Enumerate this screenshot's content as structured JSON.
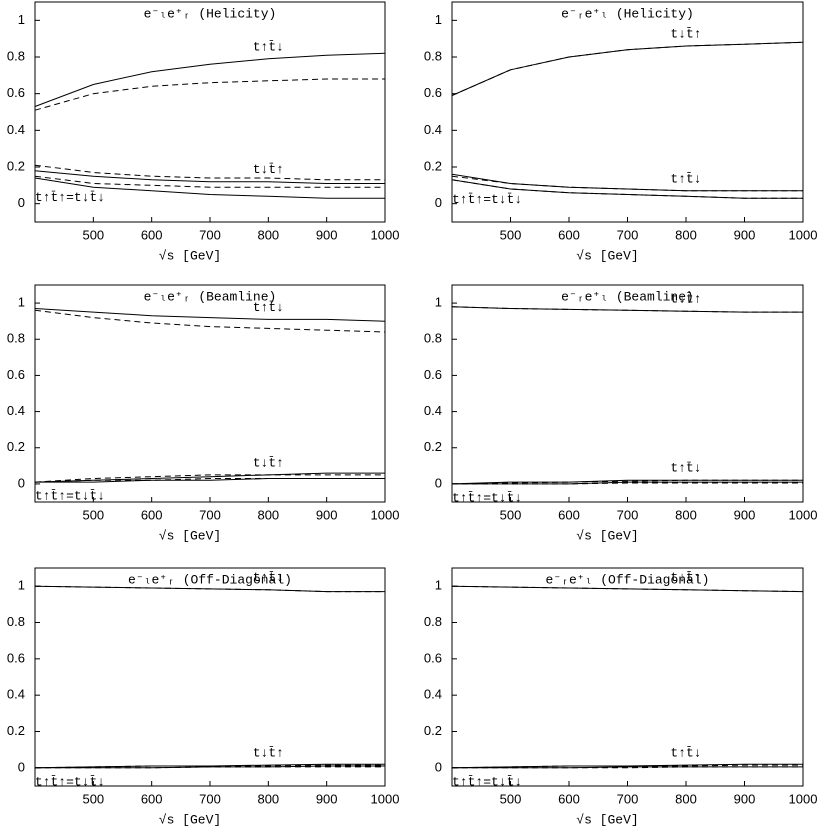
{
  "chart_data": [
    {
      "type": "line",
      "title": "e⁻ₗe⁺ᵣ (Helicity)",
      "xlabel": "√s  [GeV]",
      "x": [
        400,
        500,
        600,
        700,
        800,
        900,
        1000
      ],
      "xlim": [
        400,
        1000
      ],
      "ylim": [
        -0.1,
        1.1
      ],
      "xticks": [
        500,
        600,
        700,
        800,
        900,
        1000
      ],
      "yticks": [
        0,
        0.2,
        0.4,
        0.6,
        0.8,
        1
      ],
      "color": "#000000",
      "series": [
        {
          "name": "t↑t̄↓",
          "line_style": "solid",
          "values": [
            0.53,
            0.65,
            0.72,
            0.76,
            0.79,
            0.81,
            0.82
          ]
        },
        {
          "line_style": "dashed",
          "values": [
            0.51,
            0.6,
            0.64,
            0.66,
            0.67,
            0.68,
            0.68
          ]
        },
        {
          "name": "t↓t̄↑",
          "line_style": "solid",
          "values": [
            0.18,
            0.15,
            0.13,
            0.12,
            0.12,
            0.11,
            0.11
          ]
        },
        {
          "line_style": "dashed",
          "values": [
            0.21,
            0.17,
            0.15,
            0.14,
            0.14,
            0.13,
            0.13
          ]
        },
        {
          "name": "t↑t̄↑=t↓t̄↓",
          "line_style": "solid",
          "values": [
            0.14,
            0.09,
            0.07,
            0.05,
            0.04,
            0.03,
            0.03
          ]
        },
        {
          "line_style": "dashed",
          "values": [
            0.15,
            0.11,
            0.1,
            0.09,
            0.09,
            0.09,
            0.09
          ]
        }
      ]
    },
    {
      "type": "line",
      "title": "e⁻ᵣe⁺ₗ (Helicity)",
      "xlabel": "√s  [GeV]",
      "x": [
        400,
        500,
        600,
        700,
        800,
        900,
        1000
      ],
      "xlim": [
        400,
        1000
      ],
      "ylim": [
        -0.1,
        1.1
      ],
      "xticks": [
        500,
        600,
        700,
        800,
        900,
        1000
      ],
      "yticks": [
        0,
        0.2,
        0.4,
        0.6,
        0.8,
        1
      ],
      "color": "#000000",
      "series": [
        {
          "name": "t↓t̄↑",
          "line_style": "solid",
          "values": [
            0.59,
            0.73,
            0.8,
            0.84,
            0.86,
            0.87,
            0.88
          ]
        },
        {
          "line_style": "dashed",
          "values": [
            0.59,
            0.73,
            0.8,
            0.84,
            0.86,
            0.87,
            0.88
          ]
        },
        {
          "name": "t↑t̄↓",
          "line_style": "solid",
          "values": [
            0.16,
            0.11,
            0.09,
            0.08,
            0.07,
            0.07,
            0.07
          ]
        },
        {
          "line_style": "dashed",
          "values": [
            0.15,
            0.11,
            0.09,
            0.08,
            0.07,
            0.07,
            0.07
          ]
        },
        {
          "name": "t↑t̄↑=t↓t̄↓",
          "line_style": "solid",
          "values": [
            0.13,
            0.08,
            0.06,
            0.05,
            0.04,
            0.03,
            0.03
          ]
        },
        {
          "line_style": "dashed",
          "values": [
            0.13,
            0.08,
            0.06,
            0.05,
            0.04,
            0.03,
            0.03
          ]
        }
      ]
    },
    {
      "type": "line",
      "title": "e⁻ₗe⁺ᵣ (Beamline)",
      "xlabel": "√s  [GeV]",
      "x": [
        400,
        500,
        600,
        700,
        800,
        900,
        1000
      ],
      "xlim": [
        400,
        1000
      ],
      "ylim": [
        -0.1,
        1.1
      ],
      "xticks": [
        500,
        600,
        700,
        800,
        900,
        1000
      ],
      "yticks": [
        0,
        0.2,
        0.4,
        0.6,
        0.8,
        1
      ],
      "color": "#000000",
      "series": [
        {
          "name": "t↑t̄↓",
          "line_style": "solid",
          "values": [
            0.97,
            0.95,
            0.93,
            0.92,
            0.91,
            0.91,
            0.9
          ]
        },
        {
          "line_style": "dashed",
          "values": [
            0.96,
            0.92,
            0.89,
            0.87,
            0.86,
            0.85,
            0.84
          ]
        },
        {
          "name": "t↓t̄↑",
          "line_style": "solid",
          "values": [
            0.01,
            0.02,
            0.03,
            0.04,
            0.05,
            0.06,
            0.06
          ]
        },
        {
          "line_style": "dashed",
          "values": [
            0.01,
            0.03,
            0.04,
            0.05,
            0.05,
            0.05,
            0.05
          ]
        },
        {
          "name": "t↑t̄↑=t↓t̄↓",
          "line_style": "solid",
          "values": [
            0.01,
            0.01,
            0.02,
            0.02,
            0.03,
            0.03,
            0.03
          ]
        },
        {
          "line_style": "dashed",
          "values": [
            0.01,
            0.02,
            0.02,
            0.03,
            0.03,
            0.03,
            0.03
          ]
        }
      ]
    },
    {
      "type": "line",
      "title": "e⁻ᵣe⁺ₗ (Beamline)",
      "xlabel": "√s  [GeV]",
      "x": [
        400,
        500,
        600,
        700,
        800,
        900,
        1000
      ],
      "xlim": [
        400,
        1000
      ],
      "ylim": [
        -0.1,
        1.1
      ],
      "xticks": [
        500,
        600,
        700,
        800,
        900,
        1000
      ],
      "yticks": [
        0,
        0.2,
        0.4,
        0.6,
        0.8,
        1
      ],
      "color": "#000000",
      "series": [
        {
          "name": "t↓t̄↑",
          "line_style": "solid",
          "values": [
            0.98,
            0.97,
            0.965,
            0.96,
            0.955,
            0.95,
            0.95
          ]
        },
        {
          "line_style": "dashed",
          "values": [
            0.98,
            0.97,
            0.965,
            0.96,
            0.955,
            0.95,
            0.95
          ]
        },
        {
          "name": "t↑t̄↓",
          "line_style": "solid",
          "values": [
            0,
            0.01,
            0.01,
            0.02,
            0.02,
            0.02,
            0.02
          ]
        },
        {
          "line_style": "dashed",
          "values": [
            0,
            0.005,
            0.01,
            0.015,
            0.02,
            0.02,
            0.02
          ]
        },
        {
          "name": "t↑t̄↑=t↓t̄↓",
          "line_style": "solid",
          "values": [
            0,
            0,
            0,
            0.01,
            0.01,
            0.01,
            0.01
          ]
        },
        {
          "line_style": "dashed",
          "values": [
            0,
            0,
            0,
            0.005,
            0.005,
            0.005,
            0.005
          ]
        }
      ]
    },
    {
      "type": "line",
      "title": "e⁻ₗe⁺ᵣ (Off-Diagonal)",
      "xlabel": "√s  [GeV]",
      "x": [
        400,
        500,
        600,
        700,
        800,
        900,
        1000
      ],
      "xlim": [
        400,
        1000
      ],
      "ylim": [
        -0.1,
        1.1
      ],
      "xticks": [
        500,
        600,
        700,
        800,
        900,
        1000
      ],
      "yticks": [
        0,
        0.2,
        0.4,
        0.6,
        0.8,
        1
      ],
      "color": "#000000",
      "series": [
        {
          "name": "t↑t̄↓",
          "line_style": "solid",
          "values": [
            1,
            0.995,
            0.99,
            0.985,
            0.98,
            0.97,
            0.97
          ]
        },
        {
          "line_style": "dashed",
          "values": [
            1,
            0.995,
            0.99,
            0.985,
            0.98,
            0.97,
            0.97
          ]
        },
        {
          "name": "t↓t̄↑",
          "line_style": "solid",
          "values": [
            0,
            0.005,
            0.01,
            0.01,
            0.015,
            0.02,
            0.02
          ]
        },
        {
          "line_style": "dashed",
          "values": [
            0,
            0.005,
            0.01,
            0.01,
            0.01,
            0.015,
            0.015
          ]
        },
        {
          "name": "t↑t̄↑=t↓t̄↓",
          "line_style": "solid",
          "values": [
            0,
            0,
            0,
            0.005,
            0.005,
            0.01,
            0.01
          ]
        },
        {
          "line_style": "dashed",
          "values": [
            0,
            0,
            0,
            0.005,
            0.005,
            0.005,
            0.005
          ]
        }
      ]
    },
    {
      "type": "line",
      "title": "e⁻ᵣe⁺ₗ (Off-Diagonal)",
      "xlabel": "√s  [GeV]",
      "x": [
        400,
        500,
        600,
        700,
        800,
        900,
        1000
      ],
      "xlim": [
        400,
        1000
      ],
      "ylim": [
        -0.1,
        1.1
      ],
      "xticks": [
        500,
        600,
        700,
        800,
        900,
        1000
      ],
      "yticks": [
        0,
        0.2,
        0.4,
        0.6,
        0.8,
        1
      ],
      "color": "#000000",
      "series": [
        {
          "name": "t↓t̄↑",
          "line_style": "solid",
          "values": [
            1,
            0.995,
            0.99,
            0.985,
            0.98,
            0.975,
            0.97
          ]
        },
        {
          "line_style": "dashed",
          "values": [
            1,
            0.995,
            0.99,
            0.985,
            0.98,
            0.975,
            0.97
          ]
        },
        {
          "name": "t↑t̄↓",
          "line_style": "solid",
          "values": [
            0,
            0.005,
            0.01,
            0.01,
            0.015,
            0.02,
            0.02
          ]
        },
        {
          "line_style": "dashed",
          "values": [
            0,
            0.005,
            0.01,
            0.01,
            0.01,
            0.015,
            0.015
          ]
        },
        {
          "name": "t↑t̄↑=t↓t̄↓",
          "line_style": "solid",
          "values": [
            0,
            0,
            0,
            0.005,
            0.005,
            0.005,
            0.005
          ]
        },
        {
          "line_style": "dashed",
          "values": [
            0,
            0,
            0,
            0,
            0.005,
            0.005,
            0.005
          ]
        }
      ]
    }
  ]
}
